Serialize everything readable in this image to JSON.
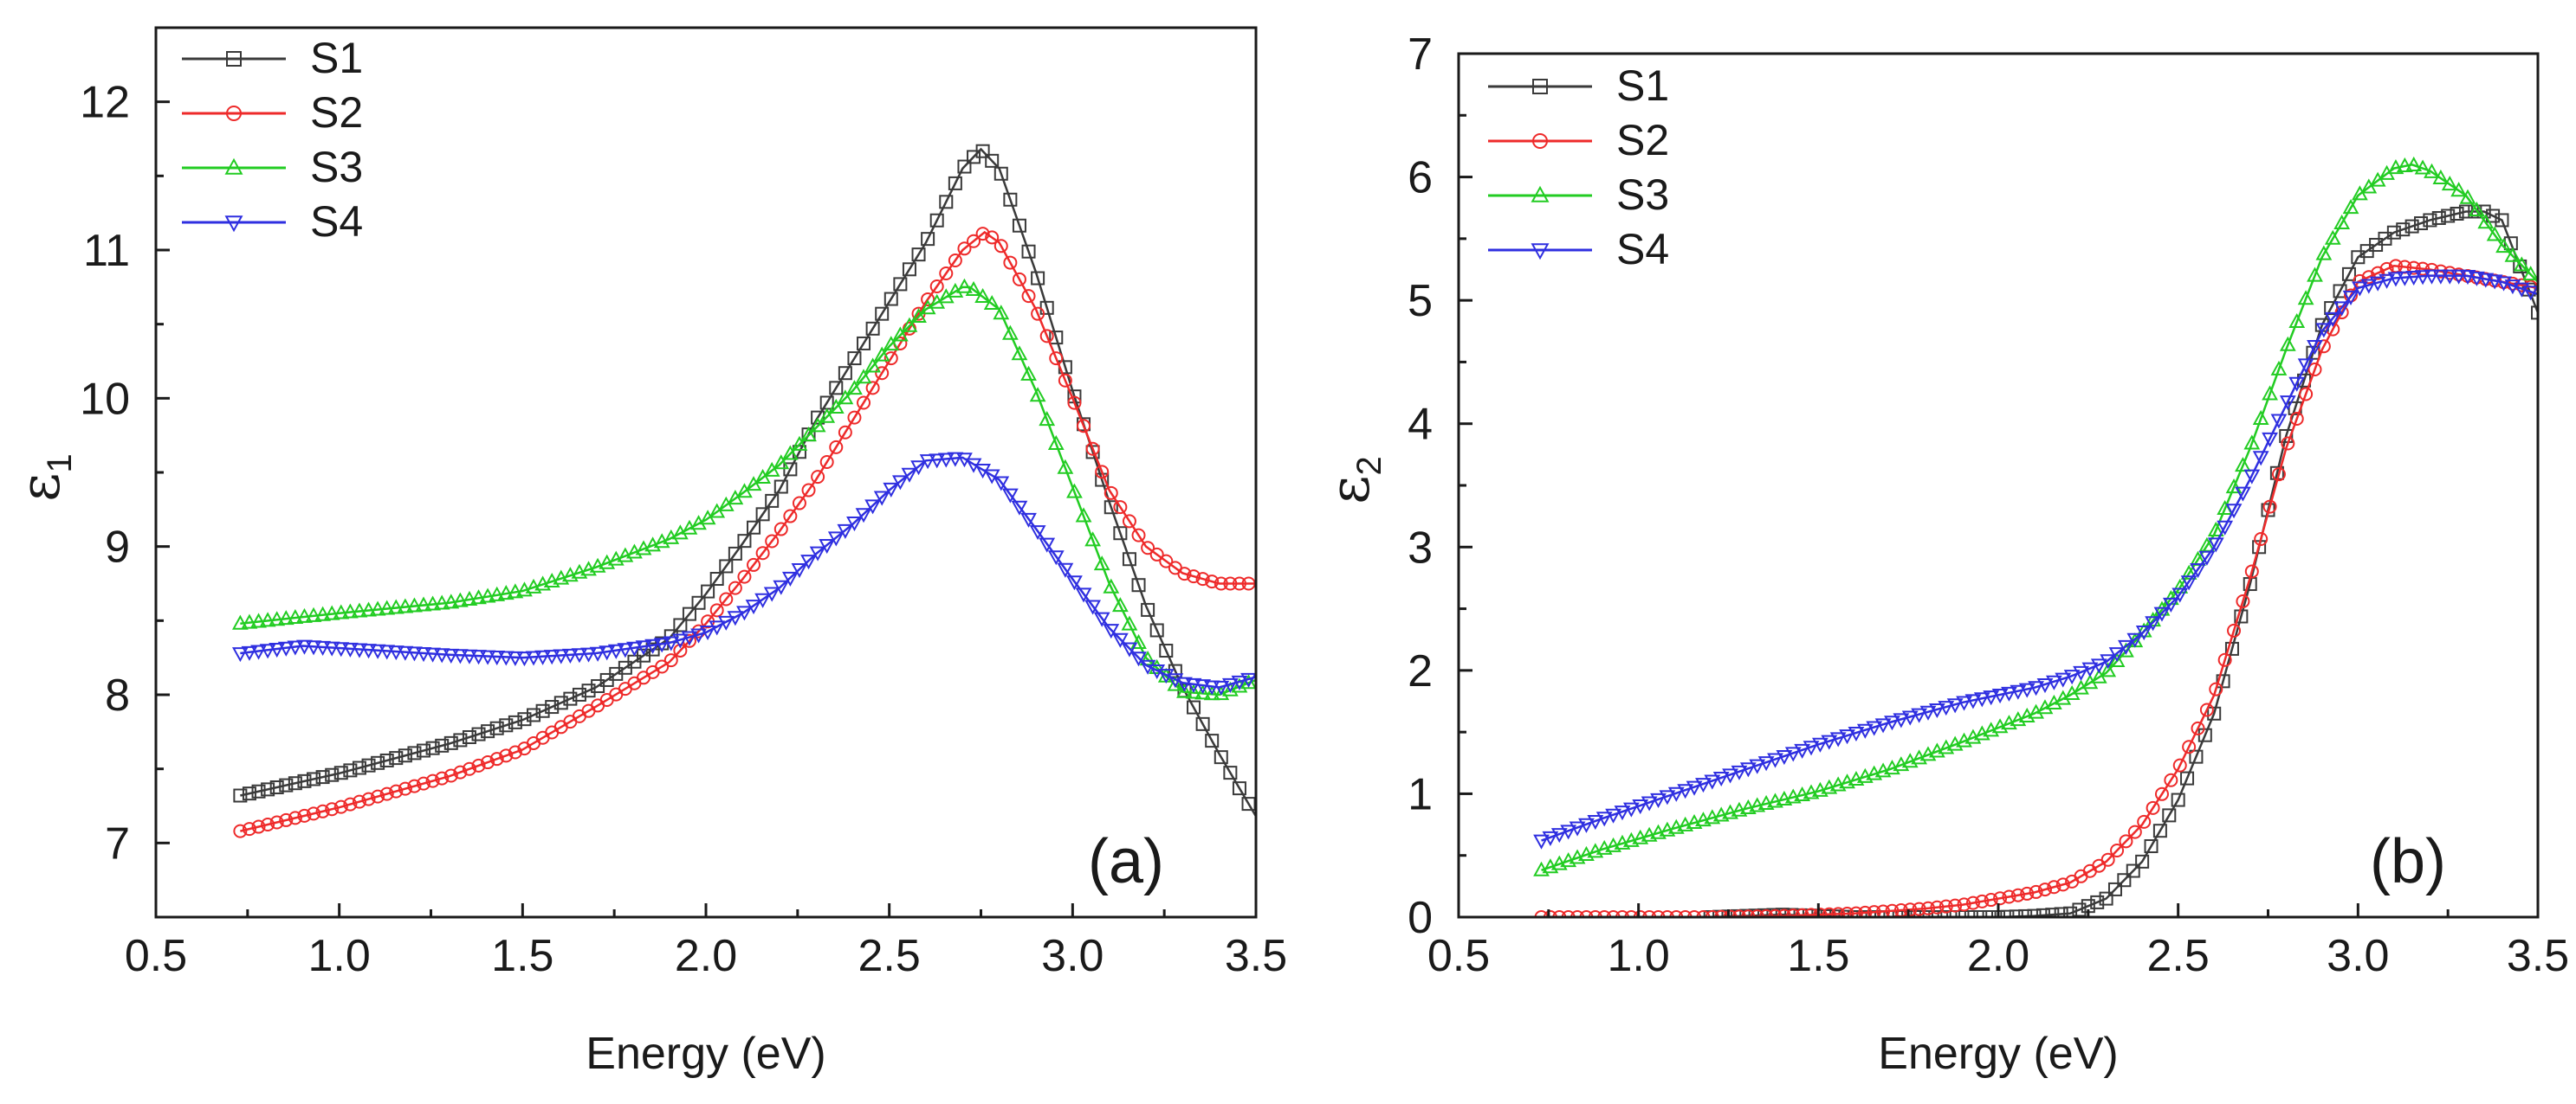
{
  "chart_data": [
    {
      "type": "line",
      "panel_label": "(a)",
      "xlabel": "Energy (eV)",
      "ylabel_symbol": "ε",
      "ylabel_subscript": "1",
      "xlim": [
        0.5,
        3.5
      ],
      "ylim": [
        6.5,
        12.5
      ],
      "xticks": [
        0.5,
        1.0,
        1.5,
        2.0,
        2.5,
        3.0,
        3.5
      ],
      "xtick_labels": [
        "0.5",
        "1.0",
        "1.5",
        "2.0",
        "2.5",
        "3.0",
        "3.5"
      ],
      "yticks": [
        7,
        8,
        9,
        10,
        11,
        12
      ],
      "ytick_labels": [
        "7",
        "8",
        "9",
        "10",
        "11",
        "12"
      ],
      "legend_position": "top-left",
      "series": [
        {
          "name": "S1",
          "color": "#3a3a3a",
          "marker": "square",
          "x": [
            0.73,
            1.0,
            1.3,
            1.5,
            1.7,
            1.9,
            2.0,
            2.1,
            2.2,
            2.3,
            2.4,
            2.5,
            2.6,
            2.7,
            2.75,
            2.8,
            2.9,
            3.0,
            3.1,
            3.2,
            3.3,
            3.4,
            3.5
          ],
          "y": [
            7.32,
            7.47,
            7.67,
            7.83,
            8.05,
            8.38,
            8.68,
            9.02,
            9.38,
            9.85,
            10.25,
            10.65,
            11.05,
            11.55,
            11.68,
            11.55,
            10.85,
            10.05,
            9.3,
            8.6,
            8.05,
            7.6,
            7.18
          ]
        },
        {
          "name": "S2",
          "color": "#ee2a2a",
          "marker": "circle",
          "x": [
            0.73,
            1.0,
            1.3,
            1.5,
            1.7,
            1.9,
            2.0,
            2.1,
            2.2,
            2.3,
            2.4,
            2.5,
            2.6,
            2.7,
            2.76,
            2.8,
            2.9,
            3.0,
            3.1,
            3.2,
            3.3,
            3.4,
            3.5
          ],
          "y": [
            7.08,
            7.24,
            7.45,
            7.63,
            7.92,
            8.22,
            8.48,
            8.78,
            9.1,
            9.45,
            9.85,
            10.25,
            10.65,
            11.0,
            11.12,
            11.05,
            10.6,
            10.0,
            9.38,
            9.0,
            8.82,
            8.75,
            8.75
          ]
        },
        {
          "name": "S3",
          "color": "#22cc22",
          "marker": "triangle-up",
          "x": [
            0.73,
            1.0,
            1.3,
            1.5,
            1.7,
            1.9,
            2.0,
            2.1,
            2.2,
            2.3,
            2.4,
            2.5,
            2.6,
            2.7,
            2.72,
            2.8,
            2.9,
            3.0,
            3.1,
            3.2,
            3.3,
            3.4,
            3.5
          ],
          "y": [
            8.48,
            8.55,
            8.62,
            8.7,
            8.86,
            9.05,
            9.18,
            9.36,
            9.55,
            9.8,
            10.05,
            10.35,
            10.6,
            10.75,
            10.75,
            10.6,
            10.05,
            9.4,
            8.75,
            8.25,
            8.02,
            8.0,
            8.1
          ]
        },
        {
          "name": "S4",
          "color": "#2f2fe0",
          "marker": "triangle-down",
          "x": [
            0.73,
            0.9,
            1.1,
            1.3,
            1.5,
            1.7,
            1.9,
            2.0,
            2.1,
            2.2,
            2.3,
            2.4,
            2.5,
            2.6,
            2.7,
            2.8,
            2.9,
            3.0,
            3.1,
            3.2,
            3.3,
            3.4,
            3.5
          ],
          "y": [
            8.28,
            8.33,
            8.3,
            8.27,
            8.25,
            8.28,
            8.35,
            8.42,
            8.55,
            8.72,
            8.95,
            9.15,
            9.38,
            9.58,
            9.6,
            9.45,
            9.12,
            8.78,
            8.45,
            8.2,
            8.08,
            8.05,
            8.12
          ]
        }
      ]
    },
    {
      "type": "line",
      "panel_label": "(b)",
      "xlabel": "Energy (eV)",
      "ylabel_symbol": "ε",
      "ylabel_subscript": "2",
      "xlim": [
        0.5,
        3.5
      ],
      "ylim": [
        0,
        7
      ],
      "xticks": [
        0.5,
        1.0,
        1.5,
        2.0,
        2.5,
        3.0,
        3.5
      ],
      "xtick_labels": [
        "0.5",
        "1.0",
        "1.5",
        "2.0",
        "2.5",
        "3.0",
        "3.5"
      ],
      "yticks": [
        0,
        1,
        2,
        3,
        4,
        5,
        6,
        7
      ],
      "ytick_labels": [
        "0",
        "1",
        "2",
        "3",
        "4",
        "5",
        "6",
        "7"
      ],
      "legend_position": "top-left",
      "series": [
        {
          "name": "S1",
          "color": "#3a3a3a",
          "marker": "square",
          "x": [
            1.2,
            1.4,
            1.6,
            1.8,
            2.0,
            2.1,
            2.2,
            2.3,
            2.4,
            2.5,
            2.6,
            2.7,
            2.8,
            2.9,
            3.0,
            3.1,
            3.2,
            3.3,
            3.35,
            3.4,
            3.5
          ],
          "y": [
            0.0,
            0.02,
            0.0,
            0.0,
            0.0,
            0.01,
            0.03,
            0.15,
            0.45,
            0.95,
            1.65,
            2.7,
            3.9,
            4.8,
            5.35,
            5.55,
            5.65,
            5.72,
            5.72,
            5.65,
            4.9
          ]
        },
        {
          "name": "S2",
          "color": "#ee2a2a",
          "marker": "circle",
          "x": [
            0.73,
            1.0,
            1.2,
            1.4,
            1.6,
            1.8,
            1.9,
            2.0,
            2.1,
            2.2,
            2.3,
            2.4,
            2.5,
            2.6,
            2.7,
            2.8,
            2.9,
            3.0,
            3.1,
            3.2,
            3.3,
            3.4,
            3.5
          ],
          "y": [
            0.0,
            0.0,
            0.0,
            0.01,
            0.03,
            0.07,
            0.1,
            0.15,
            0.2,
            0.28,
            0.45,
            0.75,
            1.2,
            1.8,
            2.75,
            3.8,
            4.6,
            5.15,
            5.28,
            5.25,
            5.2,
            5.15,
            5.1
          ]
        },
        {
          "name": "S3",
          "color": "#22cc22",
          "marker": "triangle-up",
          "x": [
            0.73,
            0.9,
            1.1,
            1.3,
            1.5,
            1.7,
            1.9,
            2.1,
            2.2,
            2.3,
            2.4,
            2.5,
            2.6,
            2.7,
            2.8,
            2.9,
            3.0,
            3.1,
            3.15,
            3.2,
            3.3,
            3.4,
            3.5
          ],
          "y": [
            0.38,
            0.55,
            0.72,
            0.88,
            1.02,
            1.2,
            1.42,
            1.65,
            1.8,
            1.98,
            2.3,
            2.65,
            3.1,
            3.8,
            4.6,
            5.35,
            5.85,
            6.07,
            6.1,
            6.05,
            5.85,
            5.45,
            5.15
          ]
        },
        {
          "name": "S4",
          "color": "#2f2fe0",
          "marker": "triangle-down",
          "x": [
            0.73,
            0.9,
            1.1,
            1.3,
            1.5,
            1.7,
            1.9,
            2.1,
            2.2,
            2.3,
            2.4,
            2.5,
            2.6,
            2.7,
            2.8,
            2.9,
            3.0,
            3.1,
            3.2,
            3.3,
            3.4,
            3.5
          ],
          "y": [
            0.62,
            0.8,
            1.0,
            1.2,
            1.4,
            1.58,
            1.74,
            1.86,
            1.95,
            2.07,
            2.3,
            2.6,
            3.0,
            3.55,
            4.15,
            4.75,
            5.1,
            5.18,
            5.2,
            5.2,
            5.15,
            5.05
          ]
        }
      ]
    }
  ]
}
